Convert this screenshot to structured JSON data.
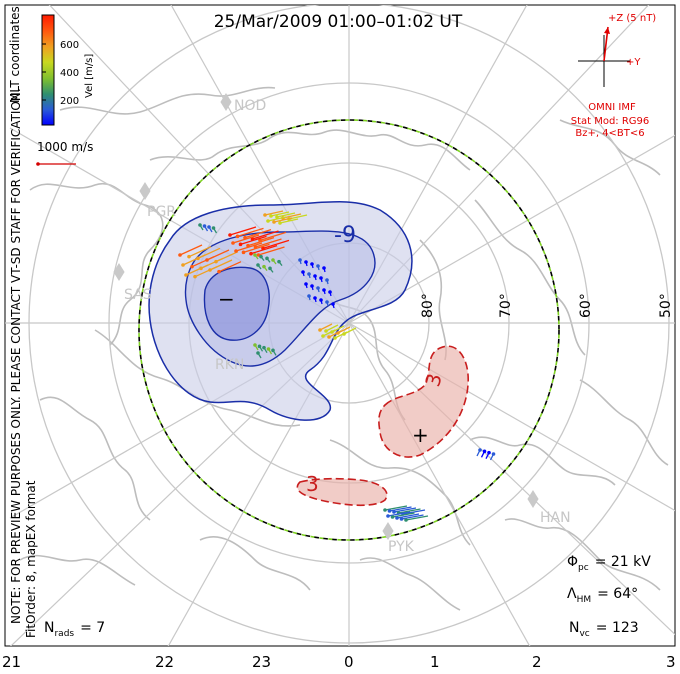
{
  "title": "25/Mar/2009 01:00–01:02 UT",
  "colorbar": {
    "label": "Vel [m/s]",
    "ticks": [
      "600",
      "400",
      "200"
    ],
    "colors": [
      "#0000ff",
      "#2a5bd7",
      "#2f8f6f",
      "#7fbf2f",
      "#c8d81f",
      "#f0a020",
      "#ff5a10",
      "#ff1a00"
    ]
  },
  "side_text": {
    "mlt_coords": "MLT coordinates",
    "note": "NOTE: FOR PREVIEW PURPOSES ONLY. PLEASE CONTACT VT-SD STAFF FOR VERIFICATION.",
    "fit_order": "FitOrder: 8, mapEX format"
  },
  "scale_vector": {
    "label": "1000 m/s",
    "color": "#d40000"
  },
  "imf": {
    "z_label": "+Z (5 nT)",
    "y_label": "+Y",
    "title": "OMNI IMF",
    "stat_mod": "Stat Mod: RG96",
    "bz": "Bz+, 4<BT<6",
    "color": "#e00000"
  },
  "stations": [
    "NOD",
    "PGR",
    "SAS",
    "RKN",
    "HAN",
    "PYK"
  ],
  "latitude_labels": [
    "80°",
    "70°",
    "60°",
    "50°"
  ],
  "mlt_labels": [
    "21",
    "22",
    "23",
    "0",
    "1",
    "2",
    "3"
  ],
  "contours": {
    "neg_label": "-9",
    "neg_center_sign": "−",
    "pos_label": "3",
    "pos_label_2": "3",
    "pos_center_sign": "+",
    "neg_color": "#1a2ea8",
    "pos_color": "#c81e1e"
  },
  "stats": {
    "phi_pc_symbol": "Φ",
    "phi_pc_sub": "pc",
    "phi_pc_value": "= 21 kV",
    "lambda_symbol": "Λ",
    "lambda_sub": "HM",
    "lambda_value": "= 64°",
    "nvc_symbol": "N",
    "nvc_sub": "vc",
    "nvc_value": "= 123",
    "nrads_symbol": "N",
    "nrads_sub": "rads",
    "nrads_value": "= 7"
  }
}
